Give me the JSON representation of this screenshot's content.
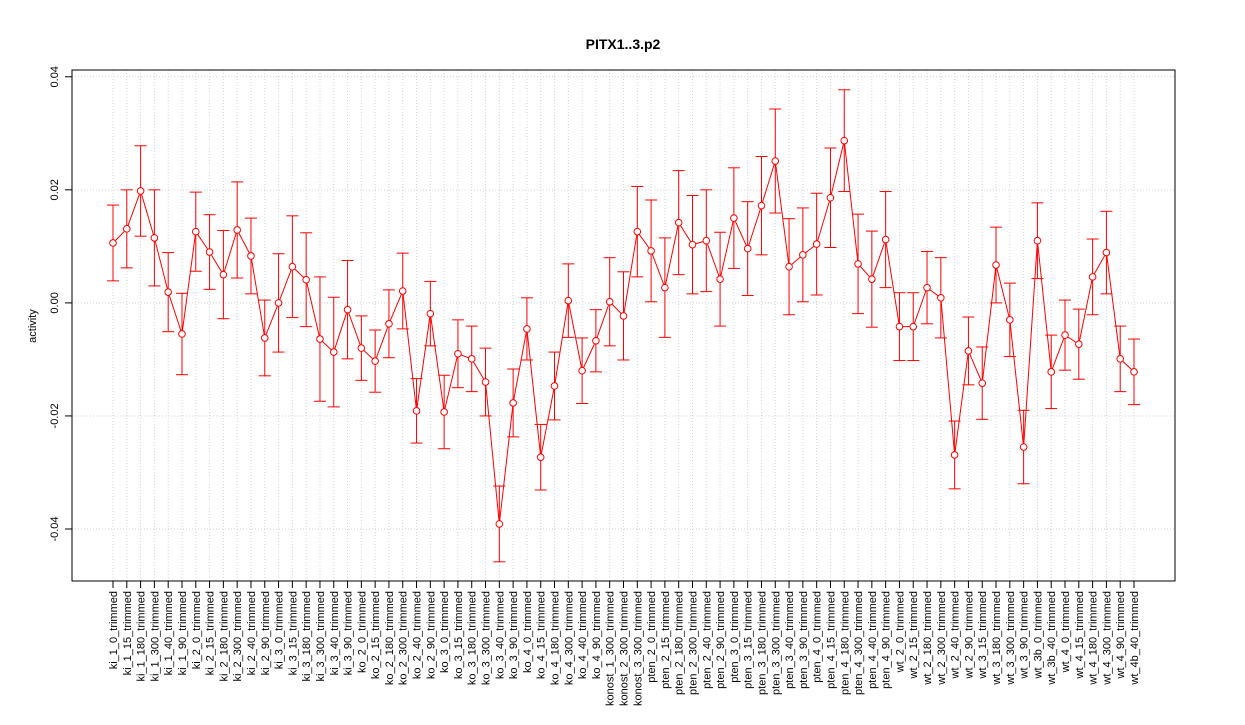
{
  "chart_data": {
    "type": "errorbar",
    "title": "PITX1..3.p2",
    "y_label": "activity",
    "categories": [
      "ki_1_0_trimmed",
      "ki_1_15_trimmed",
      "ki_1_180_trimmed",
      "ki_1_300_trimmed",
      "ki_1_40_trimmed",
      "ki_1_90_trimmed",
      "ki_2_0_trimmed",
      "ki_2_15_trimmed",
      "ki_2_180_trimmed",
      "ki_2_300_trimmed",
      "ki_2_40_trimmed",
      "ki_2_90_trimmed",
      "ki_3_0_trimmed",
      "ki_3_15_trimmed",
      "ki_3_180_trimmed",
      "ki_3_300_trimmed",
      "ki_3_40_trimmed",
      "ki_3_90_trimmed",
      "ko_2_0_trimmed",
      "ko_2_15_trimmed",
      "ko_2_180_trimmed",
      "ko_2_300_trimmed",
      "ko_2_40_trimmed",
      "ko_2_90_trimmed",
      "ko_3_0_trimmed",
      "ko_3_15_trimmed",
      "ko_3_180_trimmed",
      "ko_3_300_trimmed",
      "ko_3_40_trimmed",
      "ko_3_90_trimmed",
      "ko_4_0_trimmed",
      "ko_4_15_trimmed",
      "ko_4_180_trimmed",
      "ko_4_300_trimmed",
      "ko_4_40_trimmed",
      "ko_4_90_trimmed",
      "konost_1_300_trimmed",
      "konost_2_300_trimmed",
      "konost_3_300_trimmed",
      "pten_2_0_trimmed",
      "pten_2_15_trimmed",
      "pten_2_180_trimmed",
      "pten_2_300_trimmed",
      "pten_2_40_trimmed",
      "pten_2_90_trimmed",
      "pten_3_0_trimmed",
      "pten_3_15_trimmed",
      "pten_3_180_trimmed",
      "pten_3_300_trimmed",
      "pten_3_40_trimmed",
      "pten_3_90_trimmed",
      "pten_4_0_trimmed",
      "pten_4_15_trimmed",
      "pten_4_180_trimmed",
      "pten_4_300_trimmed",
      "pten_4_40_trimmed",
      "pten_4_90_trimmed",
      "wt_2_0_trimmed",
      "wt_2_15_trimmed",
      "wt_2_180_trimmed",
      "wt_2_300_trimmed",
      "wt_2_40_trimmed",
      "wt_2_90_trimmed",
      "wt_3_15_trimmed",
      "wt_3_180_trimmed",
      "wt_3_300_trimmed",
      "wt_3_90_trimmed",
      "wt_3b_0_trimmed",
      "wt_3b_40_trimmed",
      "wt_4_0_trimmed",
      "wt_4_15_trimmed",
      "wt_4_180_trimmed",
      "wt_4_300_trimmed",
      "wt_4_90_trimmed",
      "wt_4b_40_trimmed"
    ],
    "values": [
      0.0106,
      0.0131,
      0.0198,
      0.0115,
      0.0019,
      -0.0055,
      0.0126,
      0.009,
      0.005,
      0.0129,
      0.0083,
      -0.0062,
      0.0,
      0.0064,
      0.0041,
      -0.0064,
      -0.0087,
      -0.0012,
      -0.008,
      -0.0103,
      -0.0037,
      0.0021,
      -0.0191,
      -0.0019,
      -0.0193,
      -0.009,
      -0.0099,
      -0.014,
      -0.0391,
      -0.0177,
      -0.0046,
      -0.0273,
      -0.0147,
      0.0004,
      -0.012,
      -0.0067,
      0.0002,
      -0.0023,
      0.0126,
      0.0092,
      0.0027,
      0.0142,
      0.0103,
      0.011,
      0.0042,
      0.015,
      0.0096,
      0.0172,
      0.0251,
      0.0064,
      0.0085,
      0.0104,
      0.0186,
      0.0287,
      0.0069,
      0.0042,
      0.0112,
      -0.0042,
      -0.0042,
      0.0027,
      0.0009,
      -0.0269,
      -0.0085,
      -0.0142,
      0.0067,
      -0.003,
      -0.0255,
      0.011,
      -0.0122,
      -0.0057,
      -0.0073,
      0.0046,
      0.0089,
      -0.0099,
      -0.0122
    ],
    "errors": [
      0.0067,
      0.0069,
      0.008,
      0.0085,
      0.007,
      0.0072,
      0.007,
      0.0066,
      0.0078,
      0.0085,
      0.0067,
      0.0067,
      0.0087,
      0.009,
      0.0083,
      0.011,
      0.0097,
      0.0087,
      0.0057,
      0.0055,
      0.006,
      0.0067,
      0.0057,
      0.0057,
      0.0065,
      0.006,
      0.0058,
      0.006,
      0.0067,
      0.006,
      0.0055,
      0.0058,
      0.006,
      0.0065,
      0.0058,
      0.0055,
      0.0078,
      0.0078,
      0.008,
      0.009,
      0.0088,
      0.0092,
      0.0087,
      0.009,
      0.0083,
      0.0089,
      0.0083,
      0.0087,
      0.0092,
      0.0085,
      0.0083,
      0.009,
      0.0088,
      0.009,
      0.0088,
      0.0085,
      0.0085,
      0.006,
      0.006,
      0.0064,
      0.0071,
      0.006,
      0.006,
      0.0064,
      0.0067,
      0.0065,
      0.0065,
      0.0067,
      0.0065,
      0.0062,
      0.0062,
      0.0067,
      0.0073,
      0.0058,
      0.0058
    ],
    "color": "#ff0000",
    "ylim": [
      -0.0492,
      0.0412
    ],
    "yticks": [
      -0.04,
      -0.02,
      {
        "value": 0,
        "label": "0.00"
      },
      0.02,
      0.04
    ],
    "grid": true
  }
}
